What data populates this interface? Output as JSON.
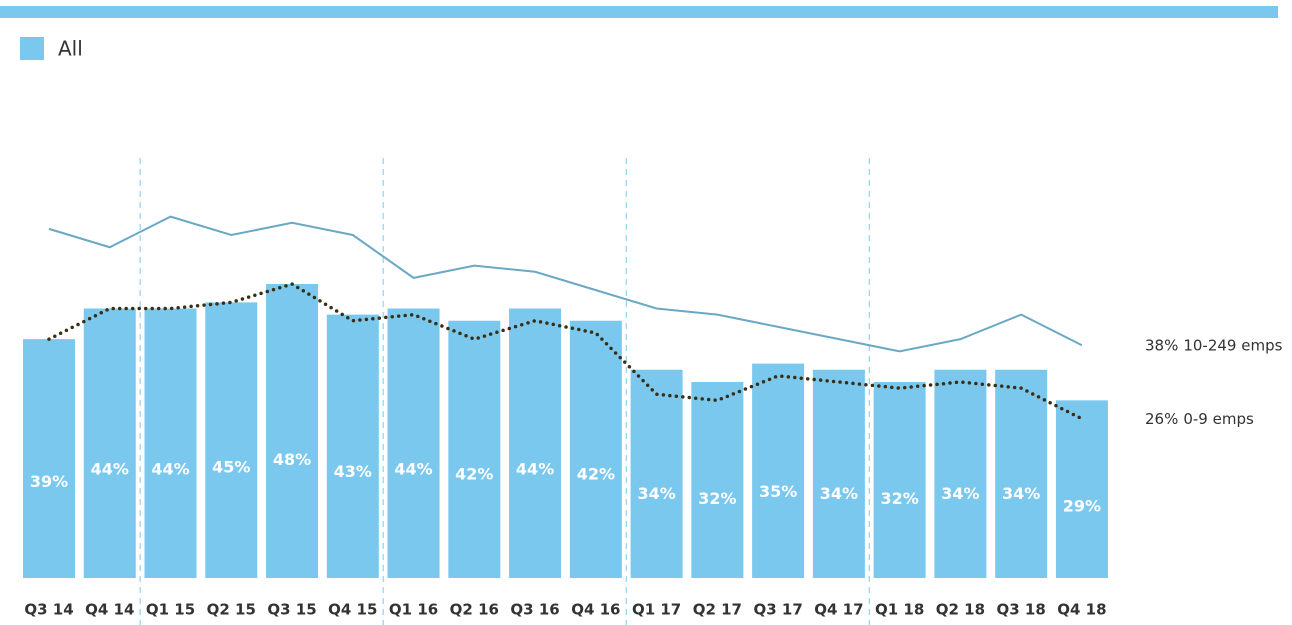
{
  "chart_data": {
    "type": "bar",
    "categories": [
      "Q3 14",
      "Q4 14",
      "Q1 15",
      "Q2 15",
      "Q3 15",
      "Q4 15",
      "Q1 16",
      "Q2 16",
      "Q3 16",
      "Q4 16",
      "Q1 17",
      "Q2 17",
      "Q3 17",
      "Q4 17",
      "Q1 18",
      "Q2 18",
      "Q3 18",
      "Q4 18"
    ],
    "ylim": [
      0,
      80
    ],
    "series": [
      {
        "name": "All",
        "type": "bar",
        "color": "#7bc8ef",
        "values": [
          39,
          44,
          44,
          45,
          48,
          43,
          44,
          42,
          44,
          42,
          34,
          32,
          35,
          34,
          32,
          34,
          34,
          29
        ],
        "value_labels": [
          "39%",
          "44%",
          "44%",
          "45%",
          "48%",
          "43%",
          "44%",
          "42%",
          "44%",
          "42%",
          "34%",
          "32%",
          "35%",
          "34%",
          "32%",
          "34%",
          "34%",
          "29%"
        ]
      },
      {
        "name": "10-249 emps",
        "type": "line",
        "color": "#6aa8c4",
        "dotted": false,
        "values": [
          57,
          54,
          59,
          56,
          58,
          56,
          49,
          51,
          50,
          47,
          44,
          43,
          41,
          39,
          37,
          39,
          43,
          38
        ],
        "value_labels": [
          null,
          null,
          null,
          null,
          null,
          null,
          null,
          null,
          null,
          null,
          null,
          null,
          null,
          null,
          null,
          null,
          null,
          "38%"
        ]
      },
      {
        "name": "0-9 emps",
        "type": "line",
        "color": "#3a2f14",
        "dotted": true,
        "values": [
          39,
          44,
          44,
          45,
          48,
          42,
          43,
          39,
          42,
          40,
          30,
          29,
          33,
          32,
          31,
          32,
          31,
          26
        ],
        "value_labels": [
          null,
          null,
          null,
          null,
          null,
          null,
          null,
          null,
          null,
          null,
          null,
          null,
          null,
          null,
          null,
          null,
          null,
          "26%"
        ]
      }
    ]
  }
}
